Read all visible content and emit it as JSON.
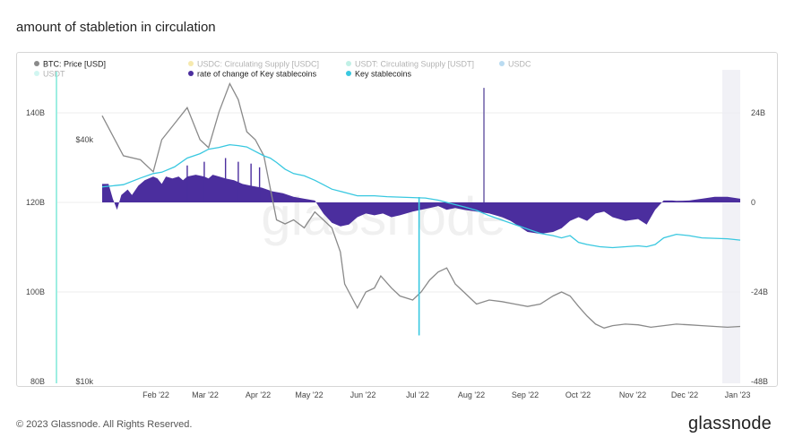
{
  "page": {
    "title": "amount of stabletion in circulation",
    "copyright": "© 2023 Glassnode. All Rights Reserved.",
    "brand": "glassnode",
    "watermark": "glassnode"
  },
  "legend": [
    {
      "label": "BTC: Price [USD]",
      "color": "#8a8a8a",
      "faded": false
    },
    {
      "label": "USDC: Circulating Supply [USDC]",
      "color": "#e8c21a",
      "faded": true
    },
    {
      "label": "USDT: Circulating Supply [USDT]",
      "color": "#4fd6b8",
      "faded": true
    },
    {
      "label": "USDC",
      "color": "#3b9ad8",
      "faded": true
    },
    {
      "label": "USDT",
      "color": "#7ee8d8",
      "faded": true
    },
    {
      "label": "rate of change of Key stablecoins",
      "color": "#4b2e9e",
      "faded": false
    },
    {
      "label": "Key stablecoins",
      "color": "#39c8e0",
      "faded": false
    }
  ],
  "chart_data": {
    "type": "line",
    "x_ticks": [
      "Feb '22",
      "Mar '22",
      "Apr '22",
      "May '22",
      "Jun '22",
      "Jul '22",
      "Aug '22",
      "Sep '22",
      "Oct '22",
      "Nov '22",
      "Dec '22",
      "Jan '23"
    ],
    "left_axis_ticks": [
      "140B",
      "120B",
      "100B",
      "80B"
    ],
    "btc_axis_ticks": [
      "$40k",
      "$10k"
    ],
    "right_axis_ticks": [
      "24B",
      "0",
      "-24B",
      "-48B"
    ],
    "right_axis_range": [
      -48,
      36
    ],
    "colors": {
      "btc": "#8a8a8a",
      "key": "#39c8e0",
      "roc": "#4b2e9e"
    },
    "series": [
      {
        "name": "BTC: Price [USD]",
        "points": [
          [
            0,
            43
          ],
          [
            10,
            38
          ],
          [
            18,
            37.5
          ],
          [
            24,
            36
          ],
          [
            28,
            40
          ],
          [
            34,
            42
          ],
          [
            40,
            44
          ],
          [
            46,
            40
          ],
          [
            50,
            39
          ],
          [
            55,
            43.5
          ],
          [
            60,
            47
          ],
          [
            64,
            45
          ],
          [
            68,
            41
          ],
          [
            72,
            40
          ],
          [
            76,
            38
          ],
          [
            79,
            34
          ],
          [
            82,
            30
          ],
          [
            86,
            29.5
          ],
          [
            90,
            30
          ],
          [
            95,
            29
          ],
          [
            100,
            31
          ],
          [
            104,
            30
          ],
          [
            108,
            29
          ],
          [
            112,
            26
          ],
          [
            114,
            22
          ],
          [
            117,
            20.5
          ],
          [
            120,
            19
          ],
          [
            124,
            21
          ],
          [
            128,
            21.5
          ],
          [
            131,
            23
          ],
          [
            136,
            21.5
          ],
          [
            140,
            20.5
          ],
          [
            146,
            20
          ],
          [
            150,
            21
          ],
          [
            154,
            22.5
          ],
          [
            158,
            23.5
          ],
          [
            162,
            24
          ],
          [
            166,
            22
          ],
          [
            170,
            21
          ],
          [
            176,
            19.5
          ],
          [
            182,
            20
          ],
          [
            188,
            19.8
          ],
          [
            194,
            19.5
          ],
          [
            200,
            19.2
          ],
          [
            206,
            19.5
          ],
          [
            212,
            20.5
          ],
          [
            216,
            21
          ],
          [
            220,
            20.5
          ],
          [
            224,
            19.2
          ],
          [
            228,
            18
          ],
          [
            232,
            17
          ],
          [
            236,
            16.5
          ],
          [
            240,
            16.8
          ],
          [
            246,
            17
          ],
          [
            252,
            16.9
          ],
          [
            258,
            16.6
          ],
          [
            264,
            16.8
          ],
          [
            270,
            17
          ],
          [
            276,
            16.9
          ],
          [
            282,
            16.8
          ],
          [
            288,
            16.7
          ],
          [
            294,
            16.6
          ],
          [
            300,
            16.7
          ]
        ]
      },
      {
        "name": "Key stablecoins",
        "points": [
          [
            0,
            123.5
          ],
          [
            10,
            124
          ],
          [
            18,
            125.5
          ],
          [
            24,
            126.5
          ],
          [
            28,
            126.8
          ],
          [
            34,
            128
          ],
          [
            40,
            130
          ],
          [
            46,
            131
          ],
          [
            50,
            132
          ],
          [
            55,
            132.4
          ],
          [
            60,
            133
          ],
          [
            64,
            132.8
          ],
          [
            68,
            132.5
          ],
          [
            72,
            131.5
          ],
          [
            76,
            130.5
          ],
          [
            79,
            130
          ],
          [
            82,
            129
          ],
          [
            86,
            127.5
          ],
          [
            90,
            126.5
          ],
          [
            95,
            126
          ],
          [
            100,
            125
          ],
          [
            104,
            124
          ],
          [
            108,
            123
          ],
          [
            112,
            122.5
          ],
          [
            116,
            122
          ],
          [
            120,
            121.5
          ],
          [
            124,
            121.5
          ],
          [
            128,
            121.5
          ],
          [
            134,
            121.3
          ],
          [
            140,
            121.2
          ],
          [
            146,
            121.1
          ],
          [
            152,
            121
          ],
          [
            158,
            120.5
          ],
          [
            162,
            120
          ],
          [
            166,
            119.5
          ],
          [
            170,
            119
          ],
          [
            176,
            118.2
          ],
          [
            182,
            117
          ],
          [
            188,
            116
          ],
          [
            194,
            115
          ],
          [
            200,
            114
          ],
          [
            206,
            113
          ],
          [
            212,
            112.5
          ],
          [
            216,
            112
          ],
          [
            220,
            112.5
          ],
          [
            224,
            111
          ],
          [
            228,
            110.5
          ],
          [
            234,
            110
          ],
          [
            240,
            109.8
          ],
          [
            246,
            110
          ],
          [
            252,
            110.2
          ],
          [
            256,
            110
          ],
          [
            260,
            110.5
          ],
          [
            264,
            112
          ],
          [
            270,
            112.8
          ],
          [
            276,
            112.5
          ],
          [
            282,
            112
          ],
          [
            288,
            111.9
          ],
          [
            294,
            111.8
          ],
          [
            300,
            111.5
          ]
        ]
      },
      {
        "name": "rate of change of Key stablecoins",
        "points": [
          [
            0,
            5
          ],
          [
            3,
            5
          ],
          [
            5,
            1
          ],
          [
            7,
            -2
          ],
          [
            9,
            2
          ],
          [
            12,
            3.5
          ],
          [
            14,
            2
          ],
          [
            17,
            4.5
          ],
          [
            20,
            6
          ],
          [
            24,
            7
          ],
          [
            26,
            6.5
          ],
          [
            28,
            5
          ],
          [
            30,
            7
          ],
          [
            33,
            6.5
          ],
          [
            36,
            7
          ],
          [
            38,
            6
          ],
          [
            40,
            7
          ],
          [
            44,
            7.5
          ],
          [
            48,
            7
          ],
          [
            50,
            6.5
          ],
          [
            52,
            7.5
          ],
          [
            55,
            7
          ],
          [
            58,
            6.5
          ],
          [
            62,
            6
          ],
          [
            66,
            5
          ],
          [
            70,
            4.5
          ],
          [
            75,
            4
          ],
          [
            80,
            3
          ],
          [
            85,
            2.5
          ],
          [
            90,
            1.5
          ],
          [
            95,
            1
          ],
          [
            100,
            0.5
          ],
          [
            104,
            -3
          ],
          [
            108,
            -5.5
          ],
          [
            112,
            -6.5
          ],
          [
            116,
            -6
          ],
          [
            120,
            -4
          ],
          [
            124,
            -3
          ],
          [
            128,
            -3.5
          ],
          [
            132,
            -3
          ],
          [
            136,
            -4
          ],
          [
            140,
            -3.5
          ],
          [
            146,
            -2.5
          ],
          [
            150,
            -2
          ],
          [
            154,
            -1.5
          ],
          [
            158,
            -1
          ],
          [
            162,
            -2
          ],
          [
            166,
            -1.5
          ],
          [
            170,
            -2
          ],
          [
            176,
            -2.5
          ],
          [
            182,
            -3
          ],
          [
            188,
            -4
          ],
          [
            192,
            -5
          ],
          [
            196,
            -6.5
          ],
          [
            200,
            -8
          ],
          [
            206,
            -8.5
          ],
          [
            212,
            -8
          ],
          [
            216,
            -7
          ],
          [
            220,
            -5
          ],
          [
            224,
            -4
          ],
          [
            228,
            -5
          ],
          [
            232,
            -3
          ],
          [
            236,
            -2.5
          ],
          [
            240,
            -4
          ],
          [
            246,
            -5
          ],
          [
            252,
            -4.5
          ],
          [
            256,
            -6
          ],
          [
            260,
            -2
          ],
          [
            264,
            0.5
          ],
          [
            268,
            0.5
          ],
          [
            270,
            0.4
          ],
          [
            276,
            0.5
          ],
          [
            282,
            1
          ],
          [
            288,
            1.5
          ],
          [
            294,
            1.5
          ],
          [
            300,
            1
          ]
        ]
      }
    ],
    "spikes": [
      {
        "series": "rate of change of Key stablecoins",
        "x": 179.5,
        "value": 31
      },
      {
        "series": "Key stablecoins",
        "x": 149,
        "value": 90
      }
    ]
  }
}
